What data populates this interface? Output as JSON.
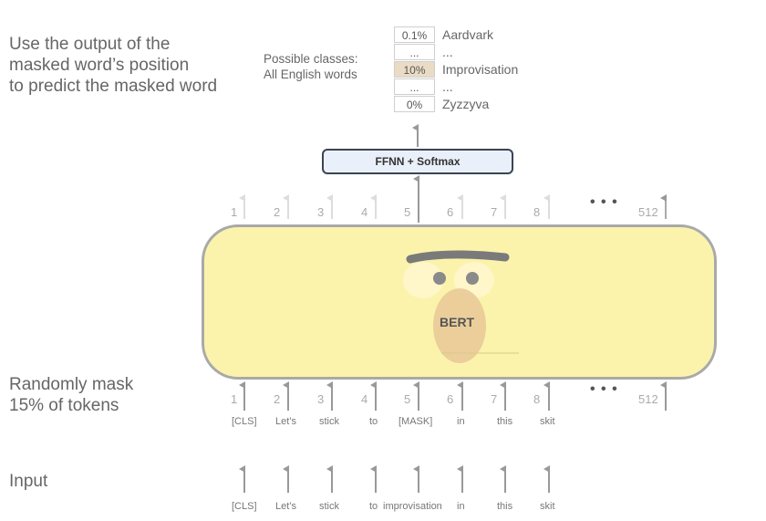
{
  "descriptions": {
    "predict": [
      "Use the output of the",
      "masked word’s position",
      "to predict the masked word"
    ],
    "mask": [
      "Randomly mask",
      "15% of tokens"
    ],
    "input": "Input"
  },
  "classes_label": [
    "Possible classes:",
    "All English words"
  ],
  "probabilities": [
    {
      "value": "0.1%",
      "word": "Aardvark",
      "highlight": false
    },
    {
      "value": "...",
      "word": "...",
      "highlight": false
    },
    {
      "value": "10%",
      "word": "Improvisation",
      "highlight": true
    },
    {
      "value": "...",
      "word": "...",
      "highlight": false
    },
    {
      "value": "0%",
      "word": "Zyzzyva",
      "highlight": false
    }
  ],
  "ffnn_label": "FFNN + Softmax",
  "model_label": "BERT",
  "positions": [
    "1",
    "2",
    "3",
    "4",
    "5",
    "6",
    "7",
    "8"
  ],
  "last_position": "512",
  "ellipsis": "• • •",
  "masked_tokens": [
    "[CLS]",
    "Let’s",
    "stick",
    "to",
    "[MASK]",
    "in",
    "this",
    "skit"
  ],
  "input_tokens": [
    "[CLS]",
    "Let’s",
    "stick",
    "to",
    "improvisation",
    "in",
    "this",
    "skit"
  ],
  "colors": {
    "bert_fill": "#fbf3ab",
    "ffnn_fill": "#eaf0fa",
    "highlight": "#eadcc4"
  }
}
